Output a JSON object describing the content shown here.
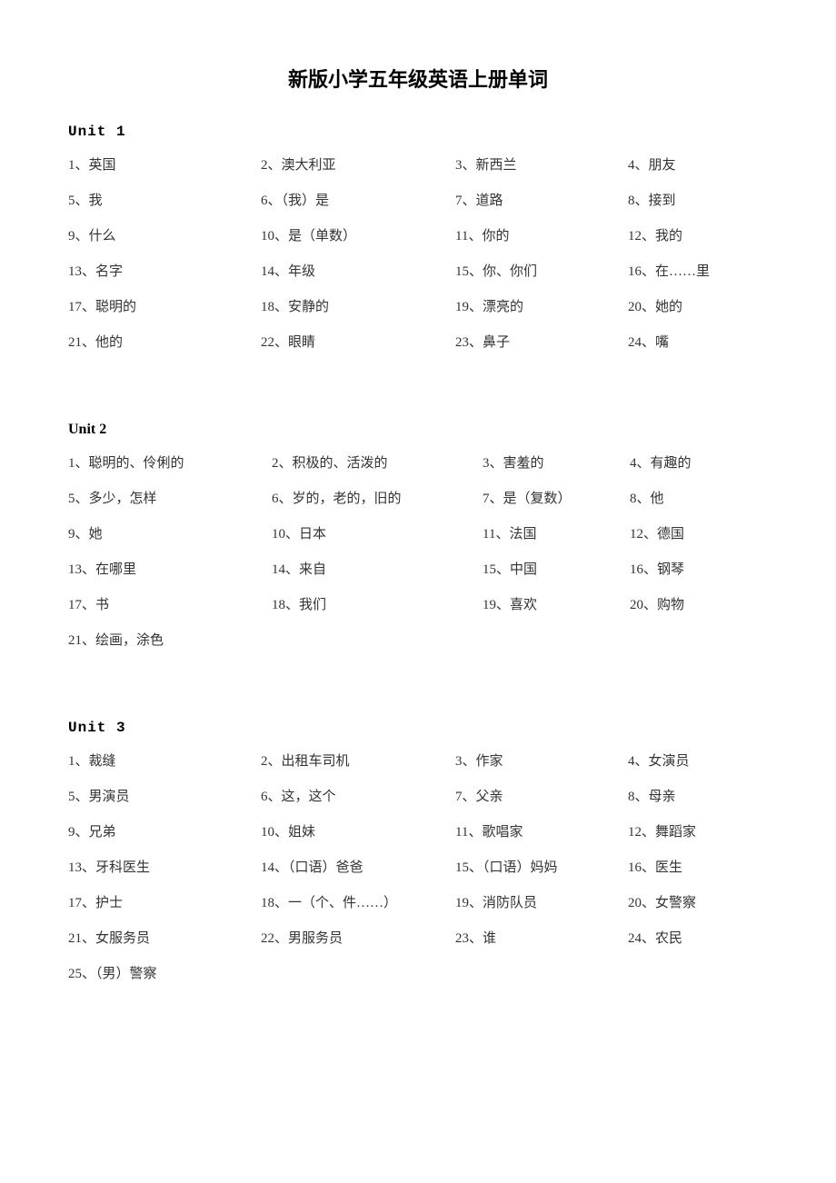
{
  "document": {
    "title": "新版小学五年级英语上册单词",
    "background_color": "#ffffff",
    "text_color": "#333333",
    "title_color": "#000000",
    "title_fontsize": 22,
    "body_fontsize": 15,
    "heading_fontsize": 16
  },
  "units": [
    {
      "heading": "Unit 1",
      "heading_style": "mono",
      "layout": "u1",
      "rows": [
        [
          "1、英国",
          "2、澳大利亚",
          "3、新西兰",
          "4、朋友"
        ],
        [
          "5、我",
          "6、（我）是",
          "7、道路",
          "8、接到"
        ],
        [
          "9、什么",
          "10、是（单数）",
          "11、你的",
          "12、我的"
        ],
        [
          "13、名字",
          "14、年级",
          "15、你、你们",
          "16、在……里"
        ],
        [
          "17、聪明的",
          "18、安静的",
          "19、漂亮的",
          "20、她的"
        ],
        [
          "21、他的",
          "22、眼睛",
          "23、鼻子",
          "24、嘴"
        ]
      ]
    },
    {
      "heading": "Unit 2",
      "heading_style": "serif-bold",
      "layout": "u2",
      "rows": [
        [
          "1、聪明的、伶俐的",
          "2、积极的、活泼的",
          "3、害羞的",
          "4、有趣的"
        ],
        [
          "5、多少，怎样",
          "6、岁的，老的，旧的",
          "7、是（复数）",
          "8、他"
        ],
        [
          "9、她",
          "10、日本",
          "11、法国",
          "12、德国"
        ],
        [
          "13、在哪里",
          "14、来自",
          "15、中国",
          "16、钢琴"
        ],
        [
          "17、书",
          "18、我们",
          "19、喜欢",
          "20、购物"
        ],
        [
          "21、绘画，涂色",
          "",
          "",
          ""
        ]
      ]
    },
    {
      "heading": "Unit 3",
      "heading_style": "mono",
      "layout": "u1",
      "rows": [
        [
          "1、裁缝",
          "2、出租车司机",
          "3、作家",
          "4、女演员"
        ],
        [
          "5、男演员",
          "6、这，这个",
          "7、父亲",
          "8、母亲"
        ],
        [
          "9、兄弟",
          "10、姐妹",
          "11、歌唱家",
          "12、舞蹈家"
        ],
        [
          "13、牙科医生",
          "14、（口语）爸爸",
          "15、（口语）妈妈",
          "16、医生"
        ],
        [
          "17、护士",
          "18、一（个、件……）",
          "19、消防队员",
          "20、女警察"
        ],
        [
          "21、女服务员",
          "22、男服务员",
          "23、谁",
          "24、农民"
        ],
        [
          "25、（男）警察",
          "",
          "",
          ""
        ]
      ]
    }
  ]
}
